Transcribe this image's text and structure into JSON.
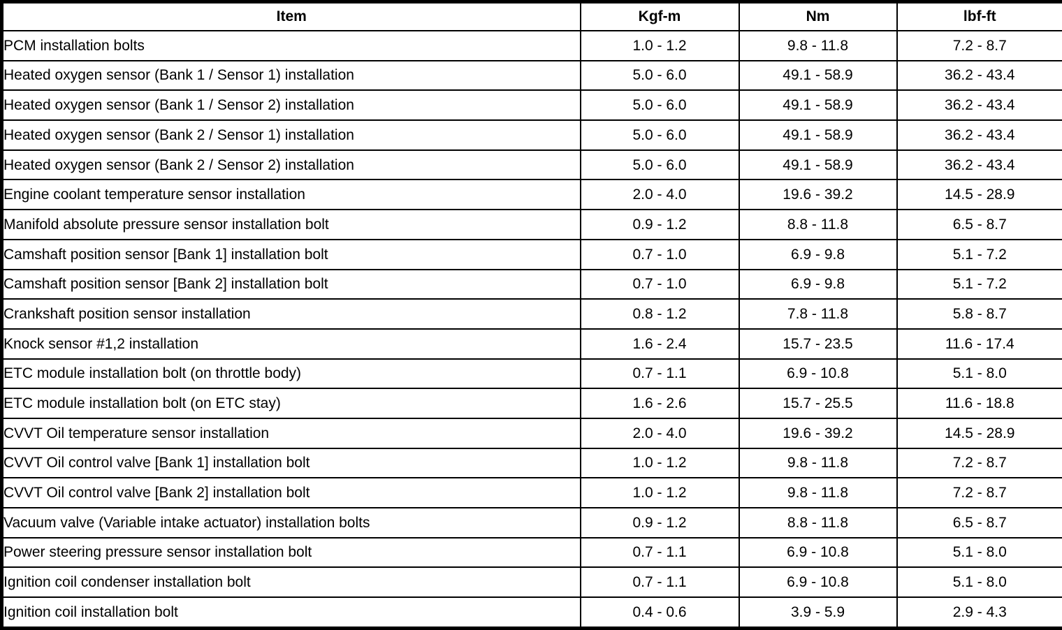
{
  "table": {
    "columns": [
      "Item",
      "Kgf-m",
      "Nm",
      "lbf-ft"
    ],
    "rows": [
      [
        "PCM installation bolts",
        "1.0 - 1.2",
        "9.8 - 11.8",
        "7.2 - 8.7"
      ],
      [
        "Heated oxygen sensor (Bank 1 / Sensor 1) installation",
        "5.0 - 6.0",
        "49.1 - 58.9",
        "36.2 - 43.4"
      ],
      [
        "Heated oxygen sensor (Bank 1 / Sensor 2) installation",
        "5.0 - 6.0",
        "49.1 - 58.9",
        "36.2 - 43.4"
      ],
      [
        "Heated oxygen sensor (Bank 2 / Sensor 1) installation",
        "5.0 - 6.0",
        "49.1 - 58.9",
        "36.2 - 43.4"
      ],
      [
        "Heated oxygen sensor (Bank 2 / Sensor 2) installation",
        "5.0 - 6.0",
        "49.1 - 58.9",
        "36.2 - 43.4"
      ],
      [
        "Engine coolant temperature sensor installation",
        "2.0 - 4.0",
        "19.6 - 39.2",
        "14.5 - 28.9"
      ],
      [
        "Manifold absolute pressure sensor installation bolt",
        "0.9 - 1.2",
        "8.8 - 11.8",
        "6.5 - 8.7"
      ],
      [
        "Camshaft position sensor [Bank 1] installation bolt",
        "0.7 - 1.0",
        "6.9 - 9.8",
        "5.1 - 7.2"
      ],
      [
        "Camshaft position sensor [Bank 2] installation bolt",
        "0.7 - 1.0",
        "6.9 - 9.8",
        "5.1 - 7.2"
      ],
      [
        "Crankshaft position sensor installation",
        "0.8 - 1.2",
        "7.8 - 11.8",
        "5.8 - 8.7"
      ],
      [
        "Knock sensor #1,2 installation",
        "1.6 - 2.4",
        "15.7 - 23.5",
        "11.6 - 17.4"
      ],
      [
        "ETC module installation bolt (on throttle body)",
        "0.7 - 1.1",
        "6.9 - 10.8",
        "5.1 - 8.0"
      ],
      [
        "ETC module installation bolt (on ETC stay)",
        "1.6 - 2.6",
        "15.7 - 25.5",
        "11.6 - 18.8"
      ],
      [
        "CVVT Oil temperature sensor installation",
        "2.0 - 4.0",
        "19.6 - 39.2",
        "14.5 - 28.9"
      ],
      [
        "CVVT Oil control valve [Bank 1] installation bolt",
        "1.0 - 1.2",
        "9.8 - 11.8",
        "7.2 - 8.7"
      ],
      [
        "CVVT Oil control valve [Bank 2] installation bolt",
        "1.0 - 1.2",
        "9.8 - 11.8",
        "7.2 - 8.7"
      ],
      [
        "Vacuum valve (Variable intake actuator) installation bolts",
        "0.9 - 1.2",
        "8.8 - 11.8",
        "6.5 - 8.7"
      ],
      [
        "Power steering pressure sensor installation bolt",
        "0.7 - 1.1",
        "6.9 - 10.8",
        "5.1 - 8.0"
      ],
      [
        "Ignition coil condenser installation bolt",
        "0.7 - 1.1",
        "6.9 - 10.8",
        "5.1 - 8.0"
      ],
      [
        "Ignition coil installation bolt",
        "0.4 - 0.6",
        "3.9 - 5.9",
        "2.9 - 4.3"
      ]
    ]
  }
}
